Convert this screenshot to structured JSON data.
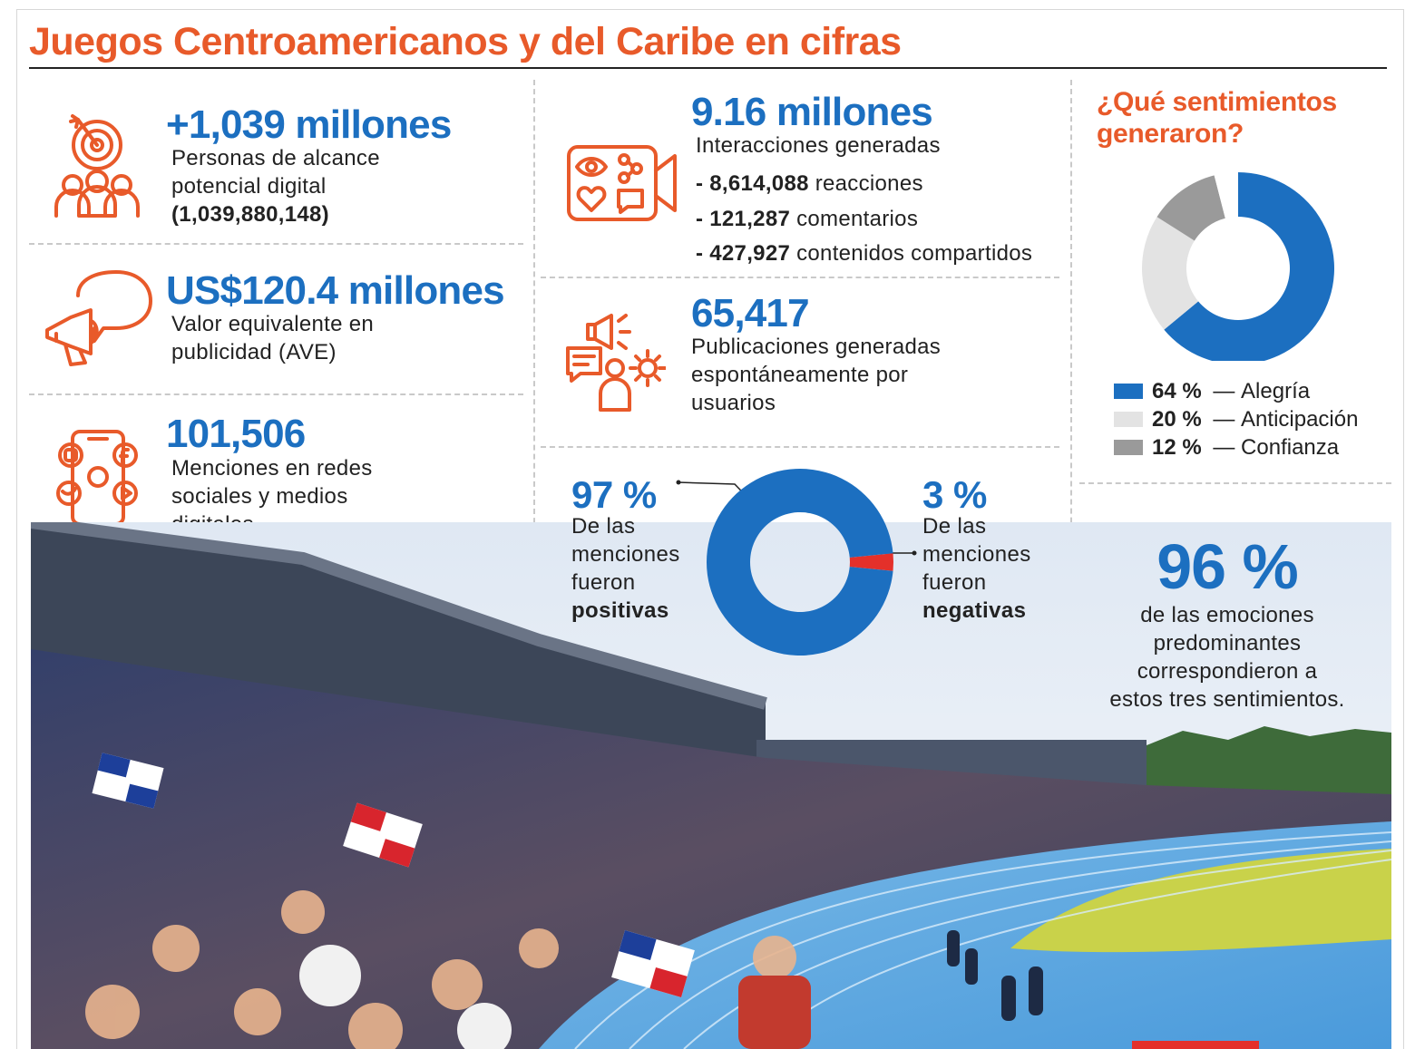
{
  "title": "Juegos Centroamericanos y del Caribe en cifras",
  "colors": {
    "accent": "#e85a2a",
    "blue": "#1c6fc0",
    "negative": "#e4302a"
  },
  "stats": {
    "reach": {
      "value": "+1,039 millones",
      "lines": [
        "Personas de alcance",
        "potencial digital",
        "(1,039,880,148)"
      ],
      "icon": "target-audience-icon"
    },
    "ave": {
      "value": "US$120.4 millones",
      "lines": [
        "Valor equivalente en",
        "publicidad (AVE)"
      ],
      "icon": "megaphone-speech-icon"
    },
    "mentions": {
      "value": "101,506",
      "lines": [
        "Menciones en redes",
        "sociales y medios",
        "digitales"
      ],
      "icon": "social-phone-icon"
    },
    "interactions": {
      "value": "9.16 millones",
      "label": "Interacciones generadas",
      "items": [
        {
          "dash": "- ",
          "num": "8,614,088",
          "text": " reacciones"
        },
        {
          "dash": "- ",
          "num": "121,287",
          "text": " comentarios"
        },
        {
          "dash": "- ",
          "num": "427,927",
          "text": " contenidos compartidos"
        }
      ],
      "icon": "video-interactions-icon"
    },
    "publications": {
      "value": "65,417",
      "lines": [
        "Publicaciones generadas",
        "espontáneamente por",
        "usuarios"
      ],
      "icon": "user-content-icon"
    }
  },
  "sentiment_split": {
    "positive": {
      "pct": "97 %",
      "lines": [
        "De las",
        "menciones",
        "fueron"
      ],
      "emph": "positivas"
    },
    "negative": {
      "pct": "3 %",
      "lines": [
        "De las",
        "menciones",
        "fueron"
      ],
      "emph": "negativas"
    }
  },
  "emotions": {
    "question": [
      "¿Qué sentimientos",
      "generaron?"
    ],
    "legend": [
      {
        "pct": "64 %",
        "sep": " — ",
        "label": "Alegría"
      },
      {
        "pct": "20 %",
        "sep": " — ",
        "label": "Anticipación"
      },
      {
        "pct": "12 %",
        "sep": " — ",
        "label": "Confianza"
      }
    ],
    "summary_value": "96 %",
    "summary_lines": [
      "de las emociones",
      "predominantes",
      "correspondieron a",
      "estos tres sentimientos."
    ]
  },
  "chart_data": [
    {
      "type": "pie",
      "categories": [
        "positivas",
        "negativas"
      ],
      "values": [
        97,
        3
      ],
      "colors": [
        "#1c6fc0",
        "#e4302a"
      ],
      "donut": true
    },
    {
      "type": "pie",
      "categories": [
        "Alegría",
        "Anticipación",
        "Confianza"
      ],
      "values": [
        64,
        20,
        12
      ],
      "colors": [
        "#1c6fc0",
        "#e3e3e3",
        "#9a9a9a"
      ],
      "donut": true
    }
  ],
  "photo": {
    "subject": "stadium-crowd-photo"
  }
}
